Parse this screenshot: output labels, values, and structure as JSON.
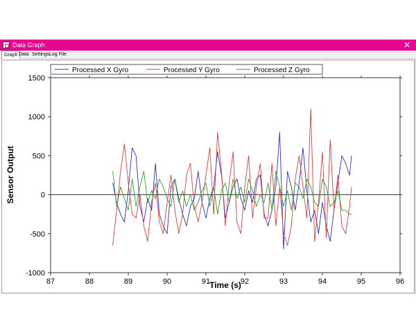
{
  "window": {
    "title": "Data Graph",
    "close_glyph": "✕",
    "titlebar_color": "#e6068f"
  },
  "tabs": [
    {
      "label": "Graph",
      "active": true
    },
    {
      "label": "Data",
      "active": false
    },
    {
      "label": "Settings",
      "active": false
    },
    {
      "label": "Log File",
      "active": false
    }
  ],
  "chart_data": {
    "type": "line",
    "xlabel": "Time (s)",
    "ylabel": "Sensor Output",
    "xlim": [
      87,
      96
    ],
    "ylim": [
      -1000,
      1500
    ],
    "xticks": [
      87,
      88,
      89,
      90,
      91,
      92,
      93,
      94,
      95,
      96
    ],
    "yticks": [
      1500,
      1000,
      500,
      0,
      -500,
      -1000
    ],
    "legend_position": "top",
    "grid": false,
    "zero_line": true,
    "series": [
      {
        "name": "Processed X Gyro",
        "color": "#2b2bd6",
        "x": [
          88.6,
          88.7,
          88.8,
          88.9,
          89.0,
          89.1,
          89.2,
          89.3,
          89.4,
          89.5,
          89.6,
          89.7,
          89.8,
          89.9,
          90.0,
          90.1,
          90.2,
          90.3,
          90.4,
          90.5,
          90.6,
          90.7,
          90.8,
          90.9,
          91.0,
          91.1,
          91.2,
          91.3,
          91.4,
          91.5,
          91.6,
          91.7,
          91.8,
          91.9,
          92.0,
          92.1,
          92.2,
          92.3,
          92.4,
          92.5,
          92.6,
          92.7,
          92.8,
          92.9,
          93.0,
          93.1,
          93.2,
          93.3,
          93.4,
          93.5,
          93.6,
          93.7,
          93.8,
          93.9,
          94.0,
          94.1,
          94.2,
          94.3,
          94.4,
          94.5,
          94.6,
          94.7,
          94.75
        ],
        "values": [
          150,
          -100,
          -250,
          -350,
          50,
          600,
          500,
          -150,
          -350,
          -50,
          -200,
          400,
          -250,
          -400,
          -500,
          100,
          200,
          -50,
          -250,
          -400,
          -150,
          -50,
          300,
          -100,
          -300,
          -50,
          100,
          550,
          250,
          -300,
          -100,
          100,
          200,
          -50,
          -200,
          50,
          -100,
          200,
          250,
          -250,
          -400,
          -200,
          100,
          800,
          -700,
          300,
          100,
          -200,
          150,
          600,
          50,
          -350,
          -200,
          -500,
          -100,
          -400,
          -600,
          -200,
          150,
          500,
          400,
          250,
          500
        ]
      },
      {
        "name": "Processed Y Gyro",
        "color": "#e63b3b",
        "x": [
          88.6,
          88.7,
          88.8,
          88.9,
          89.0,
          89.1,
          89.2,
          89.3,
          89.4,
          89.5,
          89.6,
          89.7,
          89.8,
          89.9,
          90.0,
          90.1,
          90.2,
          90.3,
          90.4,
          90.5,
          90.6,
          90.7,
          90.8,
          90.9,
          91.0,
          91.1,
          91.2,
          91.3,
          91.4,
          91.5,
          91.6,
          91.7,
          91.8,
          91.9,
          92.0,
          92.1,
          92.2,
          92.3,
          92.4,
          92.5,
          92.6,
          92.7,
          92.8,
          92.9,
          93.0,
          93.1,
          93.2,
          93.3,
          93.4,
          93.5,
          93.6,
          93.7,
          93.8,
          93.9,
          94.0,
          94.1,
          94.2,
          94.3,
          94.4,
          94.5,
          94.6,
          94.7,
          94.75
        ],
        "values": [
          -650,
          -200,
          300,
          650,
          150,
          -250,
          -300,
          0,
          -400,
          -600,
          -100,
          150,
          -350,
          -500,
          -100,
          250,
          -200,
          -500,
          -250,
          250,
          400,
          -150,
          -350,
          -100,
          250,
          600,
          -250,
          800,
          300,
          -400,
          150,
          550,
          -350,
          -500,
          100,
          500,
          -300,
          100,
          400,
          -300,
          -300,
          400,
          -400,
          100,
          -500,
          -650,
          -400,
          200,
          500,
          100,
          -300,
          1100,
          -600,
          -100,
          550,
          -550,
          700,
          -200,
          250,
          -400,
          -500,
          -150,
          100
        ]
      },
      {
        "name": "Processed Z Gyro",
        "color": "#2ca02c",
        "x": [
          88.6,
          88.7,
          88.8,
          88.9,
          89.0,
          89.1,
          89.2,
          89.3,
          89.4,
          89.5,
          89.6,
          89.7,
          89.8,
          89.9,
          90.0,
          90.1,
          90.2,
          90.3,
          90.4,
          90.5,
          90.6,
          90.7,
          90.8,
          90.9,
          91.0,
          91.1,
          91.2,
          91.3,
          91.4,
          91.5,
          91.6,
          91.7,
          91.8,
          91.9,
          92.0,
          92.1,
          92.2,
          92.3,
          92.4,
          92.5,
          92.6,
          92.7,
          92.8,
          92.9,
          93.0,
          93.1,
          93.2,
          93.3,
          93.4,
          93.5,
          93.6,
          93.7,
          93.8,
          93.9,
          94.0,
          94.1,
          94.2,
          94.3,
          94.4,
          94.5,
          94.6,
          94.7,
          94.75
        ],
        "values": [
          300,
          -150,
          100,
          -50,
          -200,
          200,
          -150,
          100,
          300,
          -100,
          50,
          -50,
          200,
          100,
          -50,
          -150,
          200,
          -100,
          50,
          -150,
          0,
          -200,
          -100,
          50,
          150,
          -150,
          100,
          -250,
          50,
          150,
          -100,
          200,
          -50,
          100,
          -100,
          200,
          50,
          -150,
          0,
          -100,
          150,
          -200,
          300,
          100,
          -150,
          50,
          -200,
          150,
          100,
          -50,
          200,
          100,
          -100,
          -150,
          200,
          100,
          -150,
          -100,
          50,
          -200,
          -200,
          -250,
          -250
        ]
      }
    ]
  }
}
